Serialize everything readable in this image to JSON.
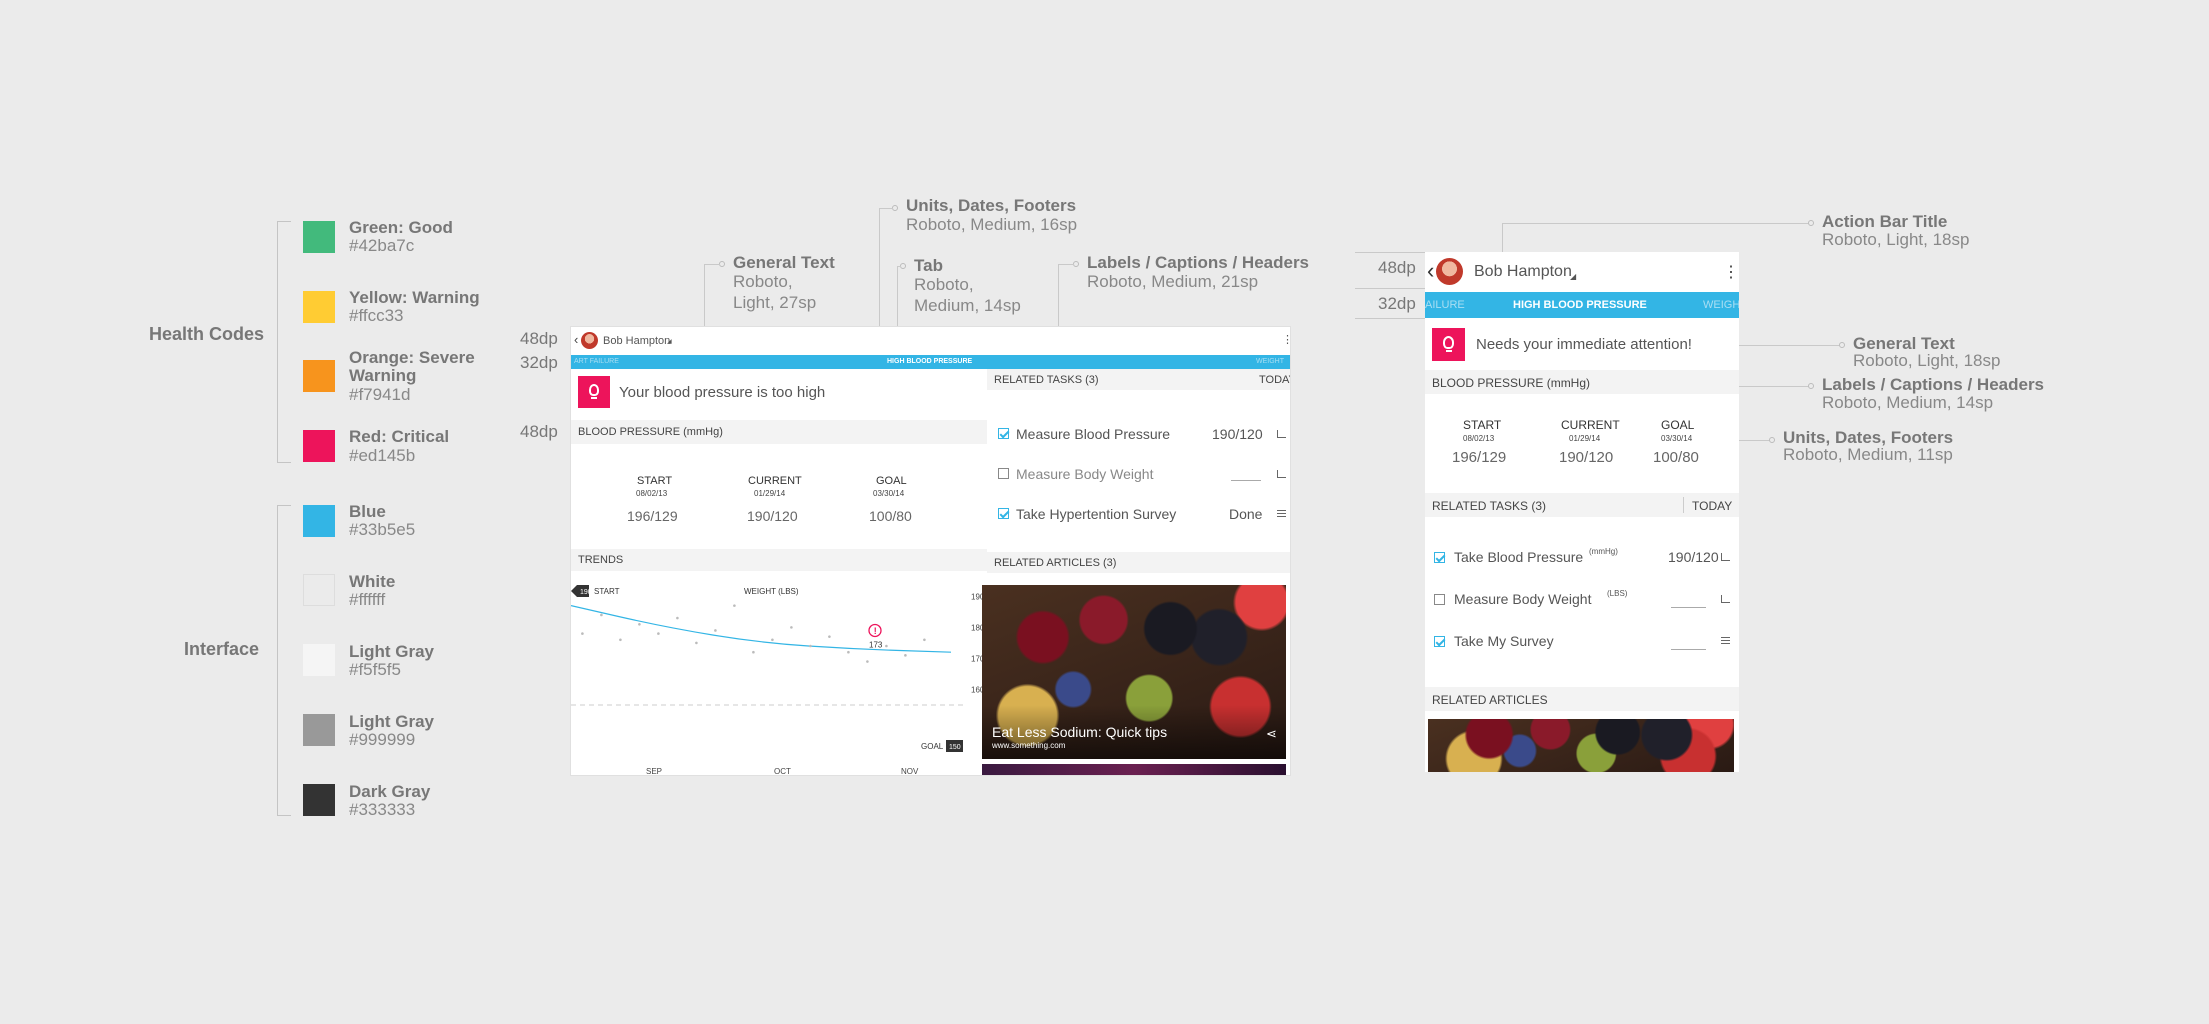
{
  "legend": {
    "health_label": "Health Codes",
    "interface_label": "Interface",
    "health": [
      {
        "name": "Green: Good",
        "hex": "#42ba7c",
        "color": "#42ba7c"
      },
      {
        "name": "Yellow: Warning",
        "hex": "#ffcc33",
        "color": "#ffcc33"
      },
      {
        "name": "Orange: Severe Warning",
        "hex": "#f7941d",
        "color": "#f7941d"
      },
      {
        "name": "Red: Critical",
        "hex": "#ed145b",
        "color": "#ed145b"
      }
    ],
    "interface": [
      {
        "name": "Blue",
        "hex": "#33b5e5",
        "color": "#33b5e5"
      },
      {
        "name": "White",
        "hex": "#ffffff",
        "color": "#ffffff"
      },
      {
        "name": "Light Gray",
        "hex": "#f5f5f5",
        "color": "#f5f5f5"
      },
      {
        "name": "Light Gray",
        "hex": "#999999",
        "color": "#999999"
      },
      {
        "name": "Dark Gray",
        "hex": "#333333",
        "color": "#333333"
      }
    ]
  },
  "dims": {
    "a": "48dp",
    "b": "32dp",
    "c": "48dp",
    "d": "48dp",
    "e": "32dp"
  },
  "ann_tablet": {
    "units_t": "Units, Dates, Footers",
    "units_s": "Roboto, Medium, 16sp",
    "general_t": "General Text",
    "general_s1": "Roboto,",
    "general_s2": "Light, 27sp",
    "tab_t": "Tab",
    "tab_s1": "Roboto,",
    "tab_s2": "Medium, 14sp",
    "labels_t": "Labels / Captions / Headers",
    "labels_s": "Roboto, Medium, 21sp"
  },
  "ann_phone": {
    "action_t": "Action Bar Title",
    "action_s": "Roboto, Light, 18sp",
    "general_t": "General Text",
    "general_s": "Roboto, Light, 18sp",
    "labels_t": "Labels / Captions / Headers",
    "labels_s": "Roboto, Medium, 14sp",
    "units_t": "Units, Dates, Footers",
    "units_s": "Roboto, Medium, 11sp"
  },
  "tablet": {
    "user": "Bob Hampton",
    "tab_left": "ART FAILURE",
    "tab_center": "HIGH BLOOD PRESSURE",
    "tab_right": "WEIGHT",
    "alert": "Your blood pressure is too high",
    "bp_header": "BLOOD PRESSURE (mmHg)",
    "start_l": "START",
    "start_d": "08/02/13",
    "start_v": "196/129",
    "current_l": "CURRENT",
    "current_d": "01/29/14",
    "current_v": "190/120",
    "goal_l": "GOAL",
    "goal_d": "03/30/14",
    "goal_v": "100/80",
    "trends": "TRENDS",
    "chart_start_badge": "190",
    "chart_start": "START",
    "chart_series": "WEIGHT (LBS)",
    "chart_point_label": "173",
    "chart_goal": "GOAL",
    "chart_goal_badge": "150",
    "tasks_header": "RELATED TASKS (3)",
    "tasks_today": "TODAY",
    "tasks": [
      {
        "label": "Measure Blood Pressure",
        "value": "190/120"
      },
      {
        "label": "Measure Body Weight",
        "value": ""
      },
      {
        "label": "Take Hypertention Survey",
        "value": "Done"
      }
    ],
    "articles_header": "RELATED ARTICLES (3)",
    "article_title": "Eat Less Sodium: Quick tips",
    "article_url": "www.something.com"
  },
  "chart_data": {
    "type": "line",
    "x_labels": [
      "SEP",
      "OCT",
      "NOV"
    ],
    "y_ticks": [
      190,
      180,
      170,
      160
    ],
    "ylim": [
      155,
      193
    ],
    "series": [
      {
        "name": "WEIGHT (LBS)",
        "trend": [
          [
            0,
            187
          ],
          [
            0.25,
            180
          ],
          [
            0.5,
            175
          ],
          [
            0.75,
            173
          ],
          [
            1,
            172
          ]
        ]
      }
    ],
    "points": [
      [
        0.03,
        178
      ],
      [
        0.08,
        184
      ],
      [
        0.13,
        176
      ],
      [
        0.18,
        181
      ],
      [
        0.23,
        178
      ],
      [
        0.28,
        183
      ],
      [
        0.33,
        175
      ],
      [
        0.38,
        179
      ],
      [
        0.43,
        187
      ],
      [
        0.48,
        172
      ],
      [
        0.53,
        176
      ],
      [
        0.58,
        180
      ],
      [
        0.63,
        174
      ],
      [
        0.68,
        177
      ],
      [
        0.73,
        172
      ],
      [
        0.78,
        169
      ],
      [
        0.83,
        174
      ],
      [
        0.88,
        171
      ],
      [
        0.93,
        176
      ]
    ],
    "highlight": {
      "x": 0.8,
      "y": 173,
      "label": "173"
    },
    "start": 190,
    "goal": 150
  },
  "phone": {
    "user": "Bob Hampton",
    "tab_left": "AILURE",
    "tab_center": "HIGH BLOOD PRESSURE",
    "tab_right": "WEIGH",
    "alert": "Needs your immediate attention!",
    "bp_header": "BLOOD PRESSURE (mmHg)",
    "start_l": "START",
    "start_d": "08/02/13",
    "start_v": "196/129",
    "current_l": "CURRENT",
    "current_d": "01/29/14",
    "current_v": "190/120",
    "goal_l": "GOAL",
    "goal_d": "03/30/14",
    "goal_v": "100/80",
    "tasks_header": "RELATED TASKS (3)",
    "tasks_today": "TODAY",
    "tasks": [
      {
        "label": "Take Blood Pressure",
        "unit": "(mmHg)",
        "value": "190/120"
      },
      {
        "label": "Measure Body Weight",
        "unit": "(LBS)",
        "value": ""
      },
      {
        "label": "Take My Survey",
        "unit": "",
        "value": ""
      }
    ],
    "articles_header": "RELATED ARTICLES"
  }
}
